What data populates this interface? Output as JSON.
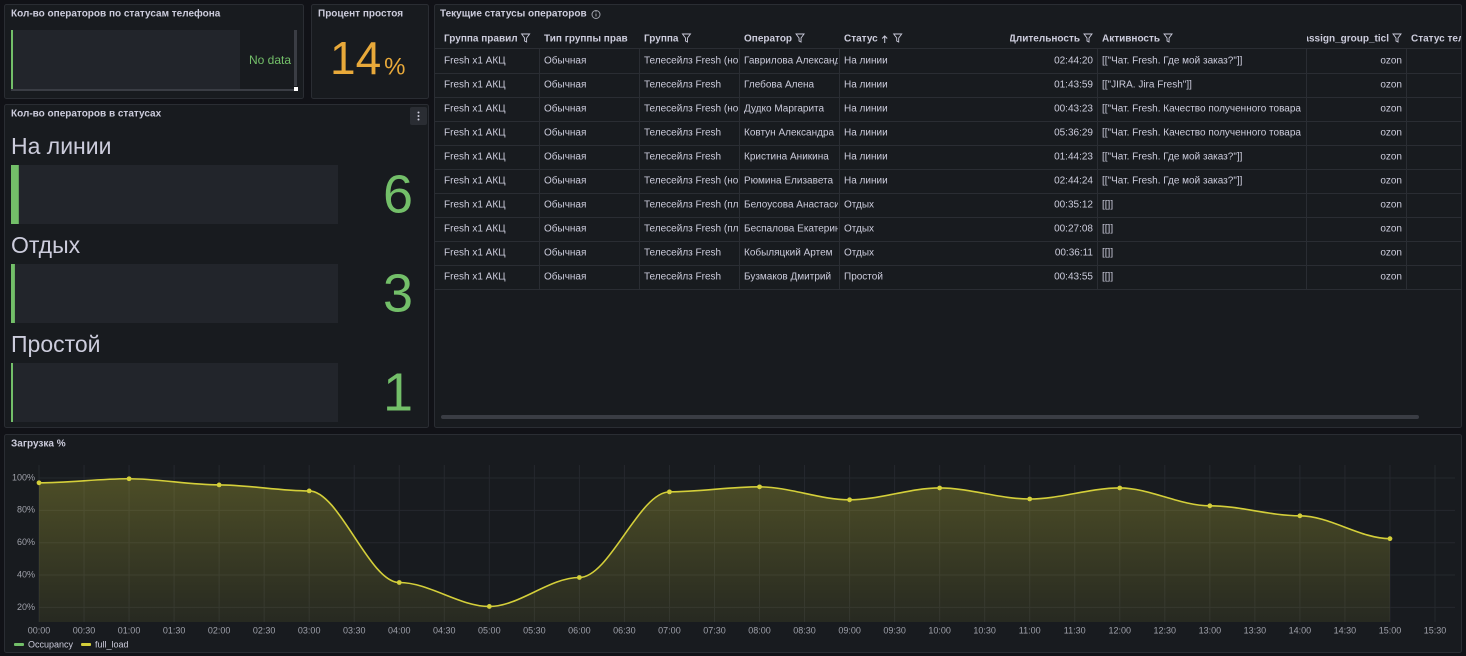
{
  "phone_status_panel": {
    "title": "Кол-во операторов по статусам телефона",
    "message": "No data"
  },
  "idle_panel": {
    "title": "Процент простоя",
    "value": 14,
    "unit": "%"
  },
  "status_panel": {
    "title": "Кол-во операторов в статусах",
    "items": [
      {
        "label": "На линии",
        "value": 6
      },
      {
        "label": "Отдых",
        "value": 3
      },
      {
        "label": "Простой",
        "value": 1
      }
    ]
  },
  "table": {
    "title": "Текущие статусы операторов",
    "columns": [
      "Группа правил",
      "Тип группы прав",
      "Группа",
      "Оператор",
      "Статус",
      "Длительность",
      "Активность",
      "assign_group_ticl",
      "Статус теле"
    ],
    "rows": [
      [
        "Fresh x1 АКЦ",
        "Обычная",
        "Телесейлз Fresh (но",
        "Гаврилова Александ",
        "На линии",
        "02:44:20",
        "[[\"Чат. Fresh. Где мой заказ?\"]]",
        "ozon"
      ],
      [
        "Fresh x1 АКЦ",
        "Обычная",
        "Телесейлз Fresh",
        "Глебова Алена",
        "На линии",
        "01:43:59",
        "[[\"JIRA. Jira Fresh\"]]",
        "ozon"
      ],
      [
        "Fresh x1 АКЦ",
        "Обычная",
        "Телесейлз Fresh (но",
        "Дудко Маргарита",
        "На линии",
        "00:43:23",
        "[[\"Чат. Fresh. Качество полученного товара",
        "ozon"
      ],
      [
        "Fresh x1 АКЦ",
        "Обычная",
        "Телесейлз Fresh",
        "Ковтун Александра",
        "На линии",
        "05:36:29",
        "[[\"Чат. Fresh. Качество полученного товара",
        "ozon"
      ],
      [
        "Fresh x1 АКЦ",
        "Обычная",
        "Телесейлз Fresh",
        "Кристина Аникина",
        "На линии",
        "01:44:23",
        "[[\"Чат. Fresh. Где мой заказ?\"]]",
        "ozon"
      ],
      [
        "Fresh x1 АКЦ",
        "Обычная",
        "Телесейлз Fresh (но",
        "Рюмина Елизавета",
        "На линии",
        "02:44:24",
        "[[\"Чат. Fresh. Где мой заказ?\"]]",
        "ozon"
      ],
      [
        "Fresh x1 АКЦ",
        "Обычная",
        "Телесейлз Fresh (пл",
        "Белоусова Анастаси",
        "Отдых",
        "00:35:12",
        "[[]]",
        "ozon"
      ],
      [
        "Fresh x1 АКЦ",
        "Обычная",
        "Телесейлз Fresh (пл",
        "Беспалова Екатерин",
        "Отдых",
        "00:27:08",
        "[[]]",
        "ozon"
      ],
      [
        "Fresh x1 АКЦ",
        "Обычная",
        "Телесейлз Fresh",
        "Кобыляцкий Артем",
        "Отдых",
        "00:36:11",
        "[[]]",
        "ozon"
      ],
      [
        "Fresh x1 АКЦ",
        "Обычная",
        "Телесейлз Fresh",
        "Бузмаков Дмитрий",
        "Простой",
        "00:43:55",
        "[[]]",
        "ozon"
      ]
    ]
  },
  "chart_data": {
    "type": "line",
    "title": "Загрузка %",
    "x": [
      "00:00",
      "01:00",
      "02:00",
      "03:00",
      "04:00",
      "05:00",
      "06:00",
      "07:00",
      "08:00",
      "09:00",
      "10:00",
      "11:00",
      "12:00",
      "13:00",
      "14:00",
      "15:00"
    ],
    "xlim": [
      "00:00",
      "15:30"
    ],
    "xticks": [
      "00:00",
      "00:30",
      "01:00",
      "01:30",
      "02:00",
      "02:30",
      "03:00",
      "03:30",
      "04:00",
      "04:30",
      "05:00",
      "05:30",
      "06:00",
      "06:30",
      "07:00",
      "07:30",
      "08:00",
      "08:30",
      "09:00",
      "09:30",
      "10:00",
      "10:30",
      "11:00",
      "11:30",
      "12:00",
      "12:30",
      "13:00",
      "13:30",
      "14:00",
      "14:30",
      "15:00",
      "15:30"
    ],
    "ylim": [
      11,
      108
    ],
    "yticks": [
      {
        "value": 20,
        "label": "20%"
      },
      {
        "value": 40,
        "label": "40%"
      },
      {
        "value": 60,
        "label": "60%"
      },
      {
        "value": 80,
        "label": "80%"
      },
      {
        "value": 100,
        "label": "100%"
      }
    ],
    "grid": true,
    "legend": "bottom-left",
    "series": [
      {
        "name": "Occupancy",
        "color": "#73bf69",
        "values": [
          null,
          null,
          null,
          null,
          null,
          null,
          null,
          null,
          null,
          null,
          null,
          null,
          null,
          null,
          null,
          null
        ]
      },
      {
        "name": "full_load",
        "color": "#d4cf3a",
        "values": [
          97,
          99.5,
          95.7,
          92,
          35.4,
          20.6,
          38.5,
          91.4,
          94.5,
          86.5,
          93.8,
          87,
          93.8,
          82.8,
          76.6,
          62.5
        ]
      }
    ]
  }
}
